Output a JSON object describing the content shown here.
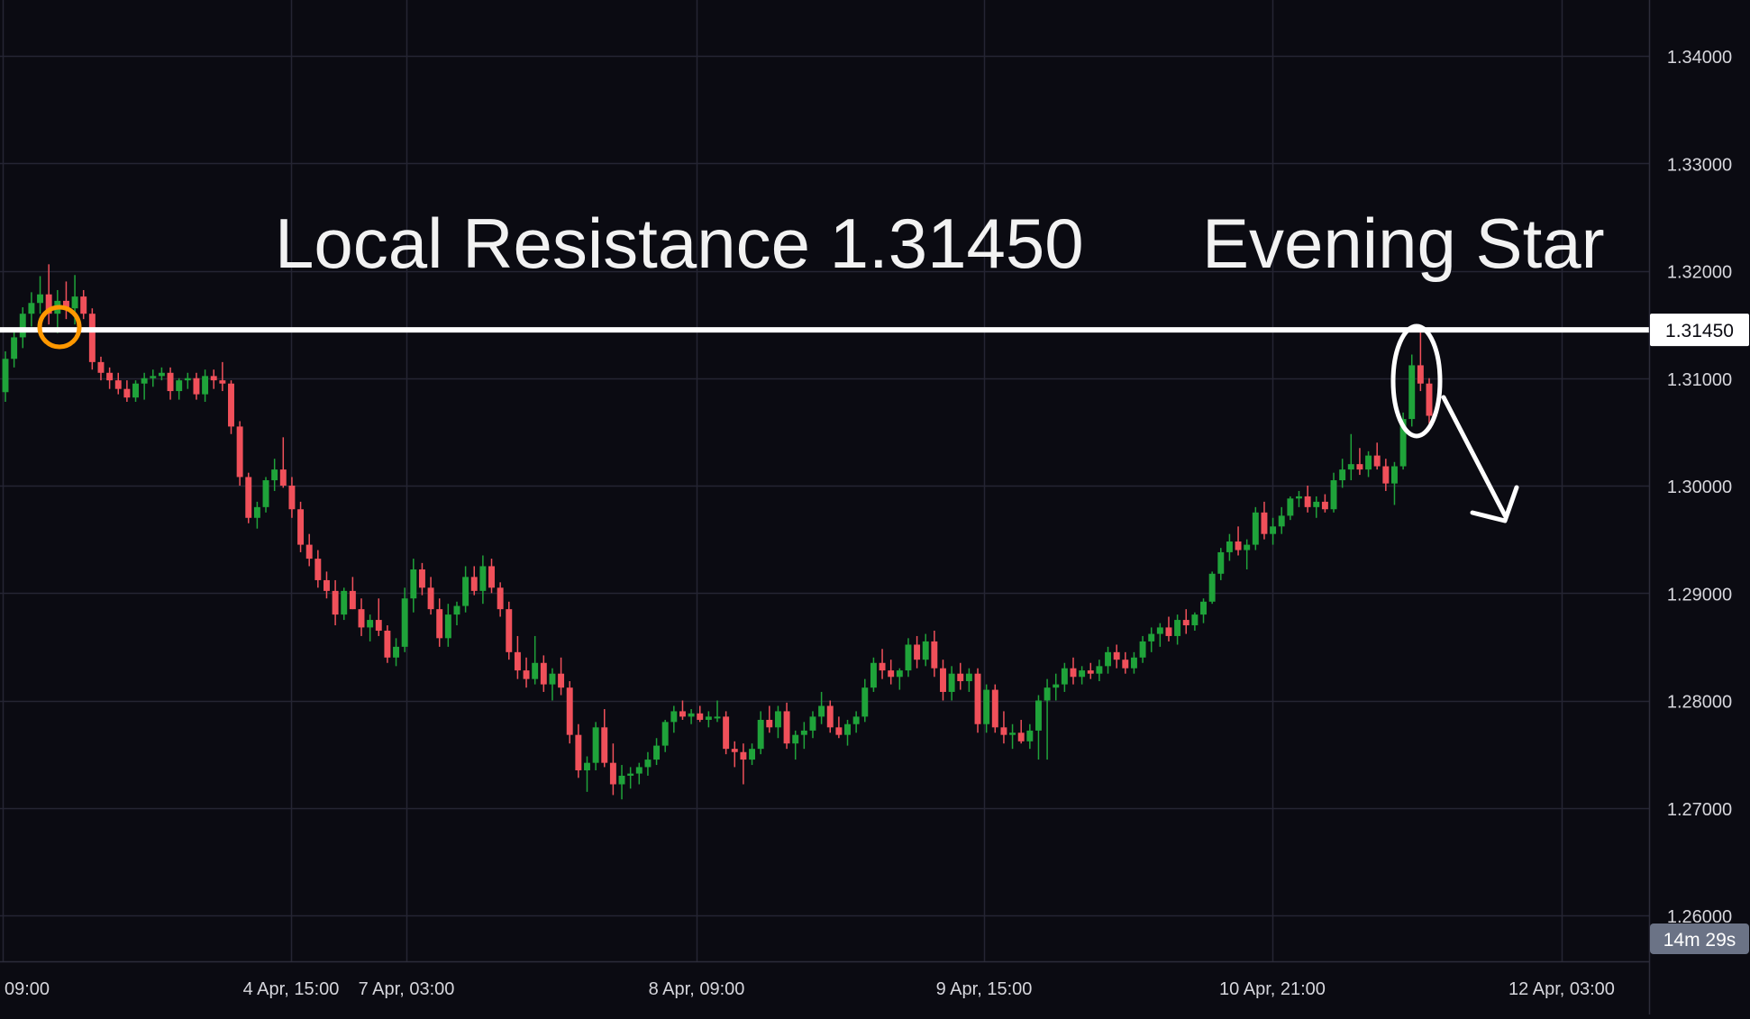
{
  "colors": {
    "background": "#0b0b12",
    "grid": "#252533",
    "axis_text": "#d6d6dc",
    "bull": "#1fa33a",
    "bear": "#f0505a",
    "resistance_line": "#ffffff",
    "price_tag_bg": "#ffffff",
    "price_tag_text": "#0b0b12",
    "countdown_bg": "#6b7386",
    "highlight_orange": "#ff9800",
    "annotation_white": "#ffffff"
  },
  "chart_data": {
    "type": "candlestick",
    "y_axis": {
      "ticks": [
        "1.34000",
        "1.33000",
        "1.32000",
        "1.31000",
        "1.30000",
        "1.29000",
        "1.28000",
        "1.27000",
        "1.26000"
      ],
      "range": [
        1.2585,
        1.3445
      ]
    },
    "x_axis": {
      "ticks": [
        "09:00",
        "4 Apr, 15:00",
        "7 Apr, 03:00",
        "8 Apr, 09:00",
        "9 Apr, 15:00",
        "10 Apr, 21:00",
        "12 Apr, 03:00"
      ]
    },
    "grid": true,
    "resistance": {
      "value": 1.3145,
      "tag": "1.31450"
    },
    "countdown": "14m 29s",
    "annotations": {
      "resistance_text": "Local Resistance 1.31450",
      "pattern_text": "Evening Star"
    },
    "candles": [
      [
        1.3087,
        1.3125,
        1.3078,
        1.3118
      ],
      [
        1.3118,
        1.3145,
        1.311,
        1.3138
      ],
      [
        1.3138,
        1.3166,
        1.3128,
        1.316
      ],
      [
        1.316,
        1.318,
        1.3148,
        1.317
      ],
      [
        1.317,
        1.3195,
        1.316,
        1.3178
      ],
      [
        1.3178,
        1.3206,
        1.315,
        1.316
      ],
      [
        1.316,
        1.3182,
        1.3142,
        1.3172
      ],
      [
        1.3172,
        1.319,
        1.3155,
        1.3165
      ],
      [
        1.3165,
        1.3196,
        1.315,
        1.3176
      ],
      [
        1.3176,
        1.3182,
        1.3155,
        1.316
      ],
      [
        1.316,
        1.3165,
        1.3108,
        1.3115
      ],
      [
        1.3115,
        1.312,
        1.3098,
        1.3105
      ],
      [
        1.3105,
        1.311,
        1.309,
        1.3098
      ],
      [
        1.3098,
        1.3105,
        1.3085,
        1.309
      ],
      [
        1.309,
        1.3098,
        1.3078,
        1.3082
      ],
      [
        1.3082,
        1.3098,
        1.3078,
        1.3095
      ],
      [
        1.3095,
        1.3105,
        1.308,
        1.31
      ],
      [
        1.31,
        1.3108,
        1.3092,
        1.3102
      ],
      [
        1.3102,
        1.311,
        1.3098,
        1.3105
      ],
      [
        1.3105,
        1.311,
        1.308,
        1.3088
      ],
      [
        1.3088,
        1.31,
        1.308,
        1.3098
      ],
      [
        1.3098,
        1.3105,
        1.309,
        1.31
      ],
      [
        1.31,
        1.3105,
        1.308,
        1.3085
      ],
      [
        1.3085,
        1.3108,
        1.3078,
        1.3102
      ],
      [
        1.3102,
        1.3108,
        1.309,
        1.3098
      ],
      [
        1.3098,
        1.3115,
        1.3088,
        1.3095
      ],
      [
        1.3095,
        1.3098,
        1.3048,
        1.3055
      ],
      [
        1.3055,
        1.306,
        1.3,
        1.3008
      ],
      [
        1.3008,
        1.3012,
        1.2965,
        1.297
      ],
      [
        1.297,
        1.2985,
        1.296,
        1.298
      ],
      [
        1.298,
        1.3008,
        1.2975,
        1.3005
      ],
      [
        1.3005,
        1.3025,
        1.2995,
        1.3015
      ],
      [
        1.3015,
        1.3045,
        1.2998,
        1.3
      ],
      [
        1.3,
        1.3008,
        1.297,
        1.2978
      ],
      [
        1.2978,
        1.2985,
        1.2938,
        1.2945
      ],
      [
        1.2945,
        1.2955,
        1.2925,
        1.2932
      ],
      [
        1.2932,
        1.294,
        1.2905,
        1.2912
      ],
      [
        1.2912,
        1.292,
        1.2895,
        1.2902
      ],
      [
        1.2902,
        1.2912,
        1.287,
        1.288
      ],
      [
        1.288,
        1.2905,
        1.2875,
        1.2902
      ],
      [
        1.2902,
        1.2915,
        1.2885,
        1.2885
      ],
      [
        1.2885,
        1.2895,
        1.286,
        1.2868
      ],
      [
        1.2868,
        1.288,
        1.2855,
        1.2875
      ],
      [
        1.2875,
        1.2895,
        1.286,
        1.2865
      ],
      [
        1.2865,
        1.287,
        1.2835,
        1.284
      ],
      [
        1.284,
        1.2858,
        1.2832,
        1.285
      ],
      [
        1.285,
        1.2905,
        1.2845,
        1.2895
      ],
      [
        1.2895,
        1.2932,
        1.2882,
        1.2922
      ],
      [
        1.2922,
        1.2928,
        1.2898,
        1.2905
      ],
      [
        1.2905,
        1.2915,
        1.288,
        1.2885
      ],
      [
        1.2885,
        1.2895,
        1.285,
        1.2858
      ],
      [
        1.2858,
        1.289,
        1.285,
        1.288
      ],
      [
        1.288,
        1.2892,
        1.287,
        1.2888
      ],
      [
        1.2888,
        1.2925,
        1.2882,
        1.2915
      ],
      [
        1.2915,
        1.2925,
        1.2898,
        1.2902
      ],
      [
        1.2902,
        1.2935,
        1.289,
        1.2925
      ],
      [
        1.2925,
        1.2932,
        1.29,
        1.2905
      ],
      [
        1.2905,
        1.291,
        1.2878,
        1.2885
      ],
      [
        1.2885,
        1.2892,
        1.2838,
        1.2845
      ],
      [
        1.2845,
        1.286,
        1.282,
        1.2828
      ],
      [
        1.2828,
        1.284,
        1.2812,
        1.282
      ],
      [
        1.282,
        1.286,
        1.2815,
        1.2835
      ],
      [
        1.2835,
        1.2842,
        1.2808,
        1.2815
      ],
      [
        1.2815,
        1.283,
        1.28,
        1.2825
      ],
      [
        1.2825,
        1.284,
        1.2805,
        1.2812
      ],
      [
        1.2812,
        1.2818,
        1.276,
        1.2768
      ],
      [
        1.2768,
        1.2778,
        1.2728,
        1.2735
      ],
      [
        1.2735,
        1.2748,
        1.2715,
        1.2742
      ],
      [
        1.2742,
        1.278,
        1.2735,
        1.2775
      ],
      [
        1.2775,
        1.2792,
        1.2738,
        1.2742
      ],
      [
        1.2742,
        1.276,
        1.2712,
        1.2722
      ],
      [
        1.2722,
        1.274,
        1.2708,
        1.273
      ],
      [
        1.273,
        1.2738,
        1.2718,
        1.2732
      ],
      [
        1.2732,
        1.2742,
        1.2722,
        1.2738
      ],
      [
        1.2738,
        1.2752,
        1.273,
        1.2745
      ],
      [
        1.2745,
        1.2765,
        1.274,
        1.2758
      ],
      [
        1.2758,
        1.2782,
        1.2752,
        1.278
      ],
      [
        1.278,
        1.2795,
        1.277,
        1.279
      ],
      [
        1.279,
        1.28,
        1.2782,
        1.2785
      ],
      [
        1.2785,
        1.2792,
        1.2778,
        1.2788
      ],
      [
        1.2788,
        1.2795,
        1.278,
        1.2782
      ],
      [
        1.2782,
        1.279,
        1.2775,
        1.2785
      ],
      [
        1.2785,
        1.28,
        1.278,
        1.2785
      ],
      [
        1.2785,
        1.279,
        1.275,
        1.2755
      ],
      [
        1.2755,
        1.2762,
        1.2738,
        1.2752
      ],
      [
        1.2752,
        1.276,
        1.2722,
        1.2745
      ],
      [
        1.2745,
        1.276,
        1.274,
        1.2755
      ],
      [
        1.2755,
        1.279,
        1.275,
        1.2782
      ],
      [
        1.2782,
        1.2795,
        1.277,
        1.2775
      ],
      [
        1.2775,
        1.2795,
        1.2765,
        1.279
      ],
      [
        1.279,
        1.2798,
        1.2755,
        1.276
      ],
      [
        1.276,
        1.2772,
        1.2745,
        1.2768
      ],
      [
        1.2768,
        1.278,
        1.2755,
        1.2772
      ],
      [
        1.2772,
        1.279,
        1.2765,
        1.2785
      ],
      [
        1.2785,
        1.2808,
        1.2778,
        1.2795
      ],
      [
        1.2795,
        1.28,
        1.277,
        1.2775
      ],
      [
        1.2775,
        1.2785,
        1.2765,
        1.2768
      ],
      [
        1.2768,
        1.2782,
        1.2758,
        1.2778
      ],
      [
        1.2778,
        1.279,
        1.277,
        1.2785
      ],
      [
        1.2785,
        1.282,
        1.278,
        1.2812
      ],
      [
        1.2812,
        1.284,
        1.2808,
        1.2835
      ],
      [
        1.2835,
        1.2848,
        1.282,
        1.2828
      ],
      [
        1.2828,
        1.2838,
        1.2815,
        1.2822
      ],
      [
        1.2822,
        1.283,
        1.281,
        1.2828
      ],
      [
        1.2828,
        1.2858,
        1.2822,
        1.2852
      ],
      [
        1.2852,
        1.286,
        1.283,
        1.2838
      ],
      [
        1.2838,
        1.2862,
        1.2832,
        1.2855
      ],
      [
        1.2855,
        1.2865,
        1.2822,
        1.283
      ],
      [
        1.283,
        1.2838,
        1.28,
        1.2808
      ],
      [
        1.2808,
        1.2832,
        1.28,
        1.2825
      ],
      [
        1.2825,
        1.2835,
        1.281,
        1.2818
      ],
      [
        1.2818,
        1.283,
        1.2808,
        1.2825
      ],
      [
        1.2825,
        1.283,
        1.277,
        1.2778
      ],
      [
        1.2778,
        1.2815,
        1.277,
        1.281
      ],
      [
        1.281,
        1.2815,
        1.277,
        1.2775
      ],
      [
        1.2775,
        1.279,
        1.276,
        1.2768
      ],
      [
        1.2768,
        1.2778,
        1.2755,
        1.277
      ],
      [
        1.277,
        1.2782,
        1.276,
        1.2762
      ],
      [
        1.2762,
        1.2778,
        1.2755,
        1.2772
      ],
      [
        1.2772,
        1.2805,
        1.2745,
        1.28
      ],
      [
        1.28,
        1.282,
        1.2745,
        1.2812
      ],
      [
        1.2812,
        1.2825,
        1.28,
        1.2815
      ],
      [
        1.2815,
        1.2835,
        1.2808,
        1.283
      ],
      [
        1.283,
        1.284,
        1.2815,
        1.2822
      ],
      [
        1.2822,
        1.2832,
        1.2815,
        1.2828
      ],
      [
        1.2828,
        1.2835,
        1.282,
        1.2825
      ],
      [
        1.2825,
        1.2838,
        1.2818,
        1.2832
      ],
      [
        1.2832,
        1.285,
        1.2825,
        1.2845
      ],
      [
        1.2845,
        1.2852,
        1.283,
        1.2838
      ],
      [
        1.2838,
        1.2845,
        1.2825,
        1.283
      ],
      [
        1.283,
        1.2845,
        1.2825,
        1.284
      ],
      [
        1.284,
        1.286,
        1.2835,
        1.2855
      ],
      [
        1.2855,
        1.2868,
        1.2845,
        1.2862
      ],
      [
        1.2862,
        1.2872,
        1.285,
        1.2868
      ],
      [
        1.2868,
        1.2878,
        1.2855,
        1.286
      ],
      [
        1.286,
        1.288,
        1.2852,
        1.2875
      ],
      [
        1.2875,
        1.2885,
        1.2862,
        1.287
      ],
      [
        1.287,
        1.2882,
        1.2865,
        1.288
      ],
      [
        1.288,
        1.2895,
        1.2872,
        1.2892
      ],
      [
        1.2892,
        1.292,
        1.289,
        1.2918
      ],
      [
        1.2918,
        1.2942,
        1.2912,
        1.2938
      ],
      [
        1.2938,
        1.2955,
        1.293,
        1.2948
      ],
      [
        1.2948,
        1.2962,
        1.2935,
        1.294
      ],
      [
        1.294,
        1.295,
        1.2922,
        1.2945
      ],
      [
        1.2945,
        1.298,
        1.294,
        1.2975
      ],
      [
        1.2975,
        1.2985,
        1.295,
        1.2955
      ],
      [
        1.2955,
        1.297,
        1.2945,
        1.2962
      ],
      [
        1.2962,
        1.298,
        1.2955,
        1.2972
      ],
      [
        1.2972,
        1.299,
        1.2968,
        1.2988
      ],
      [
        1.2988,
        1.2995,
        1.298,
        1.299
      ],
      [
        1.299,
        1.3,
        1.2975,
        1.298
      ],
      [
        1.298,
        1.299,
        1.297,
        1.2985
      ],
      [
        1.2985,
        1.2992,
        1.2975,
        1.2978
      ],
      [
        1.2978,
        1.3012,
        1.2975,
        1.3005
      ],
      [
        1.3005,
        1.3025,
        1.2998,
        1.3015
      ],
      [
        1.3015,
        1.3048,
        1.3005,
        1.302
      ],
      [
        1.302,
        1.3035,
        1.301,
        1.3015
      ],
      [
        1.3015,
        1.3032,
        1.3008,
        1.3028
      ],
      [
        1.3028,
        1.304,
        1.3015,
        1.3018
      ],
      [
        1.3018,
        1.3025,
        1.2995,
        1.3002
      ],
      [
        1.3002,
        1.3022,
        1.2982,
        1.3018
      ],
      [
        1.3018,
        1.3068,
        1.3015,
        1.3062
      ],
      [
        1.3062,
        1.3122,
        1.3055,
        1.3112
      ],
      [
        1.3112,
        1.3145,
        1.3088,
        1.3095
      ],
      [
        1.3095,
        1.31,
        1.3058,
        1.3065
      ]
    ]
  }
}
